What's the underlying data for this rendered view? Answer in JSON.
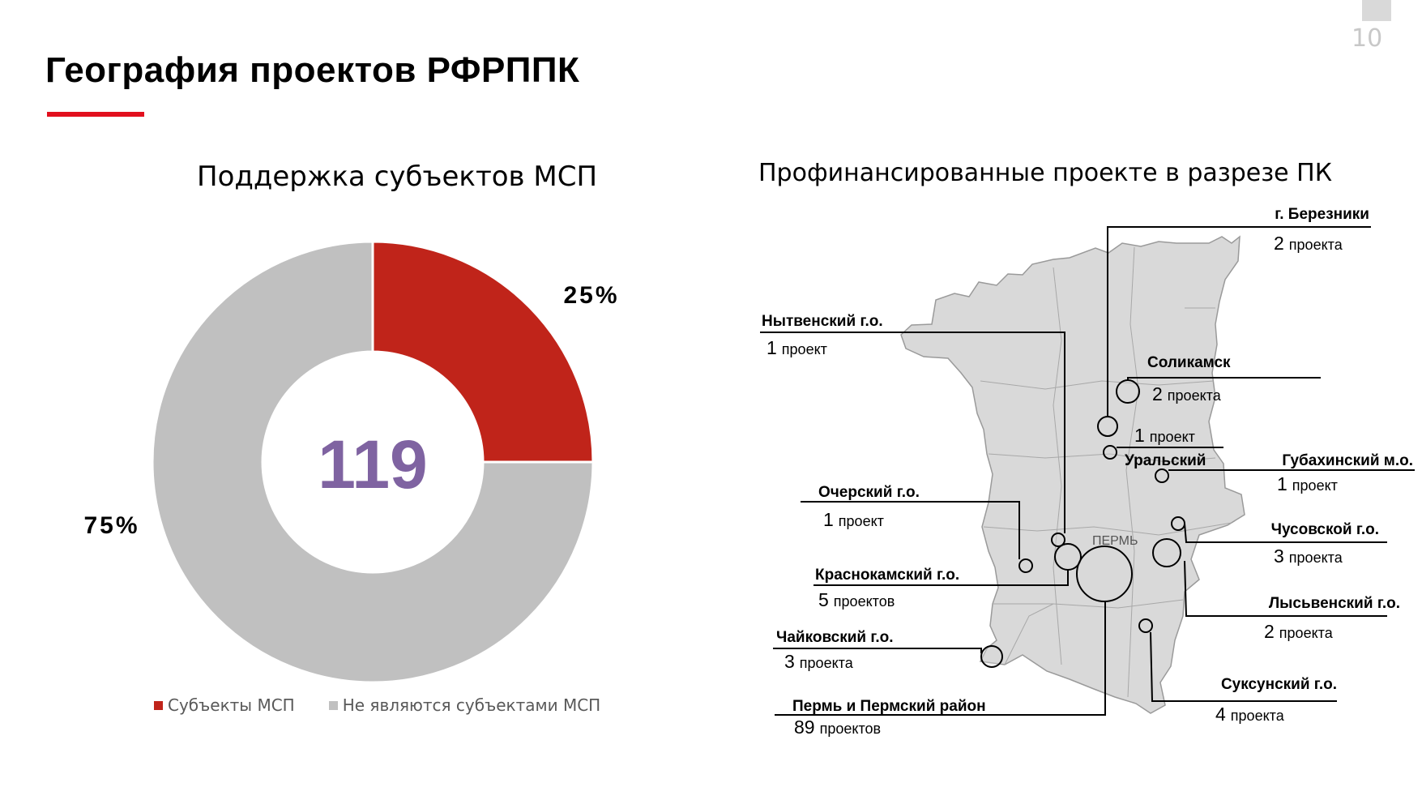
{
  "page_number": "10",
  "title": "География проектов РФРППК",
  "colors": {
    "accent": "#e2101e",
    "msp": "#c0241a",
    "non_msp": "#c0c0c0",
    "center_total": "#7f63a1"
  },
  "left_chart": {
    "heading": "Поддержка субъектов МСП",
    "total": "119"
  },
  "right_chart": {
    "heading": "Профинансированные проекте в разрезе ПК",
    "city_label": "ПЕРМЬ"
  },
  "chart_data": [
    {
      "type": "pie",
      "title": "Поддержка субъектов МСП",
      "center_label": "119",
      "categories": [
        "Субъекты МСП",
        "Не являются субъектами МСП"
      ],
      "values": [
        25,
        75
      ],
      "value_labels": [
        "25%",
        "75%"
      ],
      "legend_position": "bottom"
    },
    {
      "type": "bubble-map",
      "title": "Профинансированные проекте в разрезе ПК",
      "points": [
        {
          "name": "г. Березники",
          "count": 2,
          "unit": "проекта"
        },
        {
          "name": "Нытвенский г.о.",
          "count": 1,
          "unit": "проект"
        },
        {
          "name": "Соликамск",
          "count": 2,
          "unit": "проекта"
        },
        {
          "name": "Уральский",
          "count": 1,
          "unit": "проект"
        },
        {
          "name": "Губахинский м.о.",
          "count": 1,
          "unit": "проект"
        },
        {
          "name": "Очерский г.о.",
          "count": 1,
          "unit": "проект"
        },
        {
          "name": "Чусовской г.о.",
          "count": 3,
          "unit": "проекта"
        },
        {
          "name": "Краснокамский г.о.",
          "count": 5,
          "unit": "проектов"
        },
        {
          "name": "Лысьвенский г.о.",
          "count": 2,
          "unit": "проекта"
        },
        {
          "name": "Чайковский г.о.",
          "count": 3,
          "unit": "проекта"
        },
        {
          "name": "Суксунский г.о.",
          "count": 4,
          "unit": "проекта"
        },
        {
          "name": "Пермь и Пермский район",
          "count": 89,
          "unit": "проектов"
        }
      ]
    }
  ]
}
